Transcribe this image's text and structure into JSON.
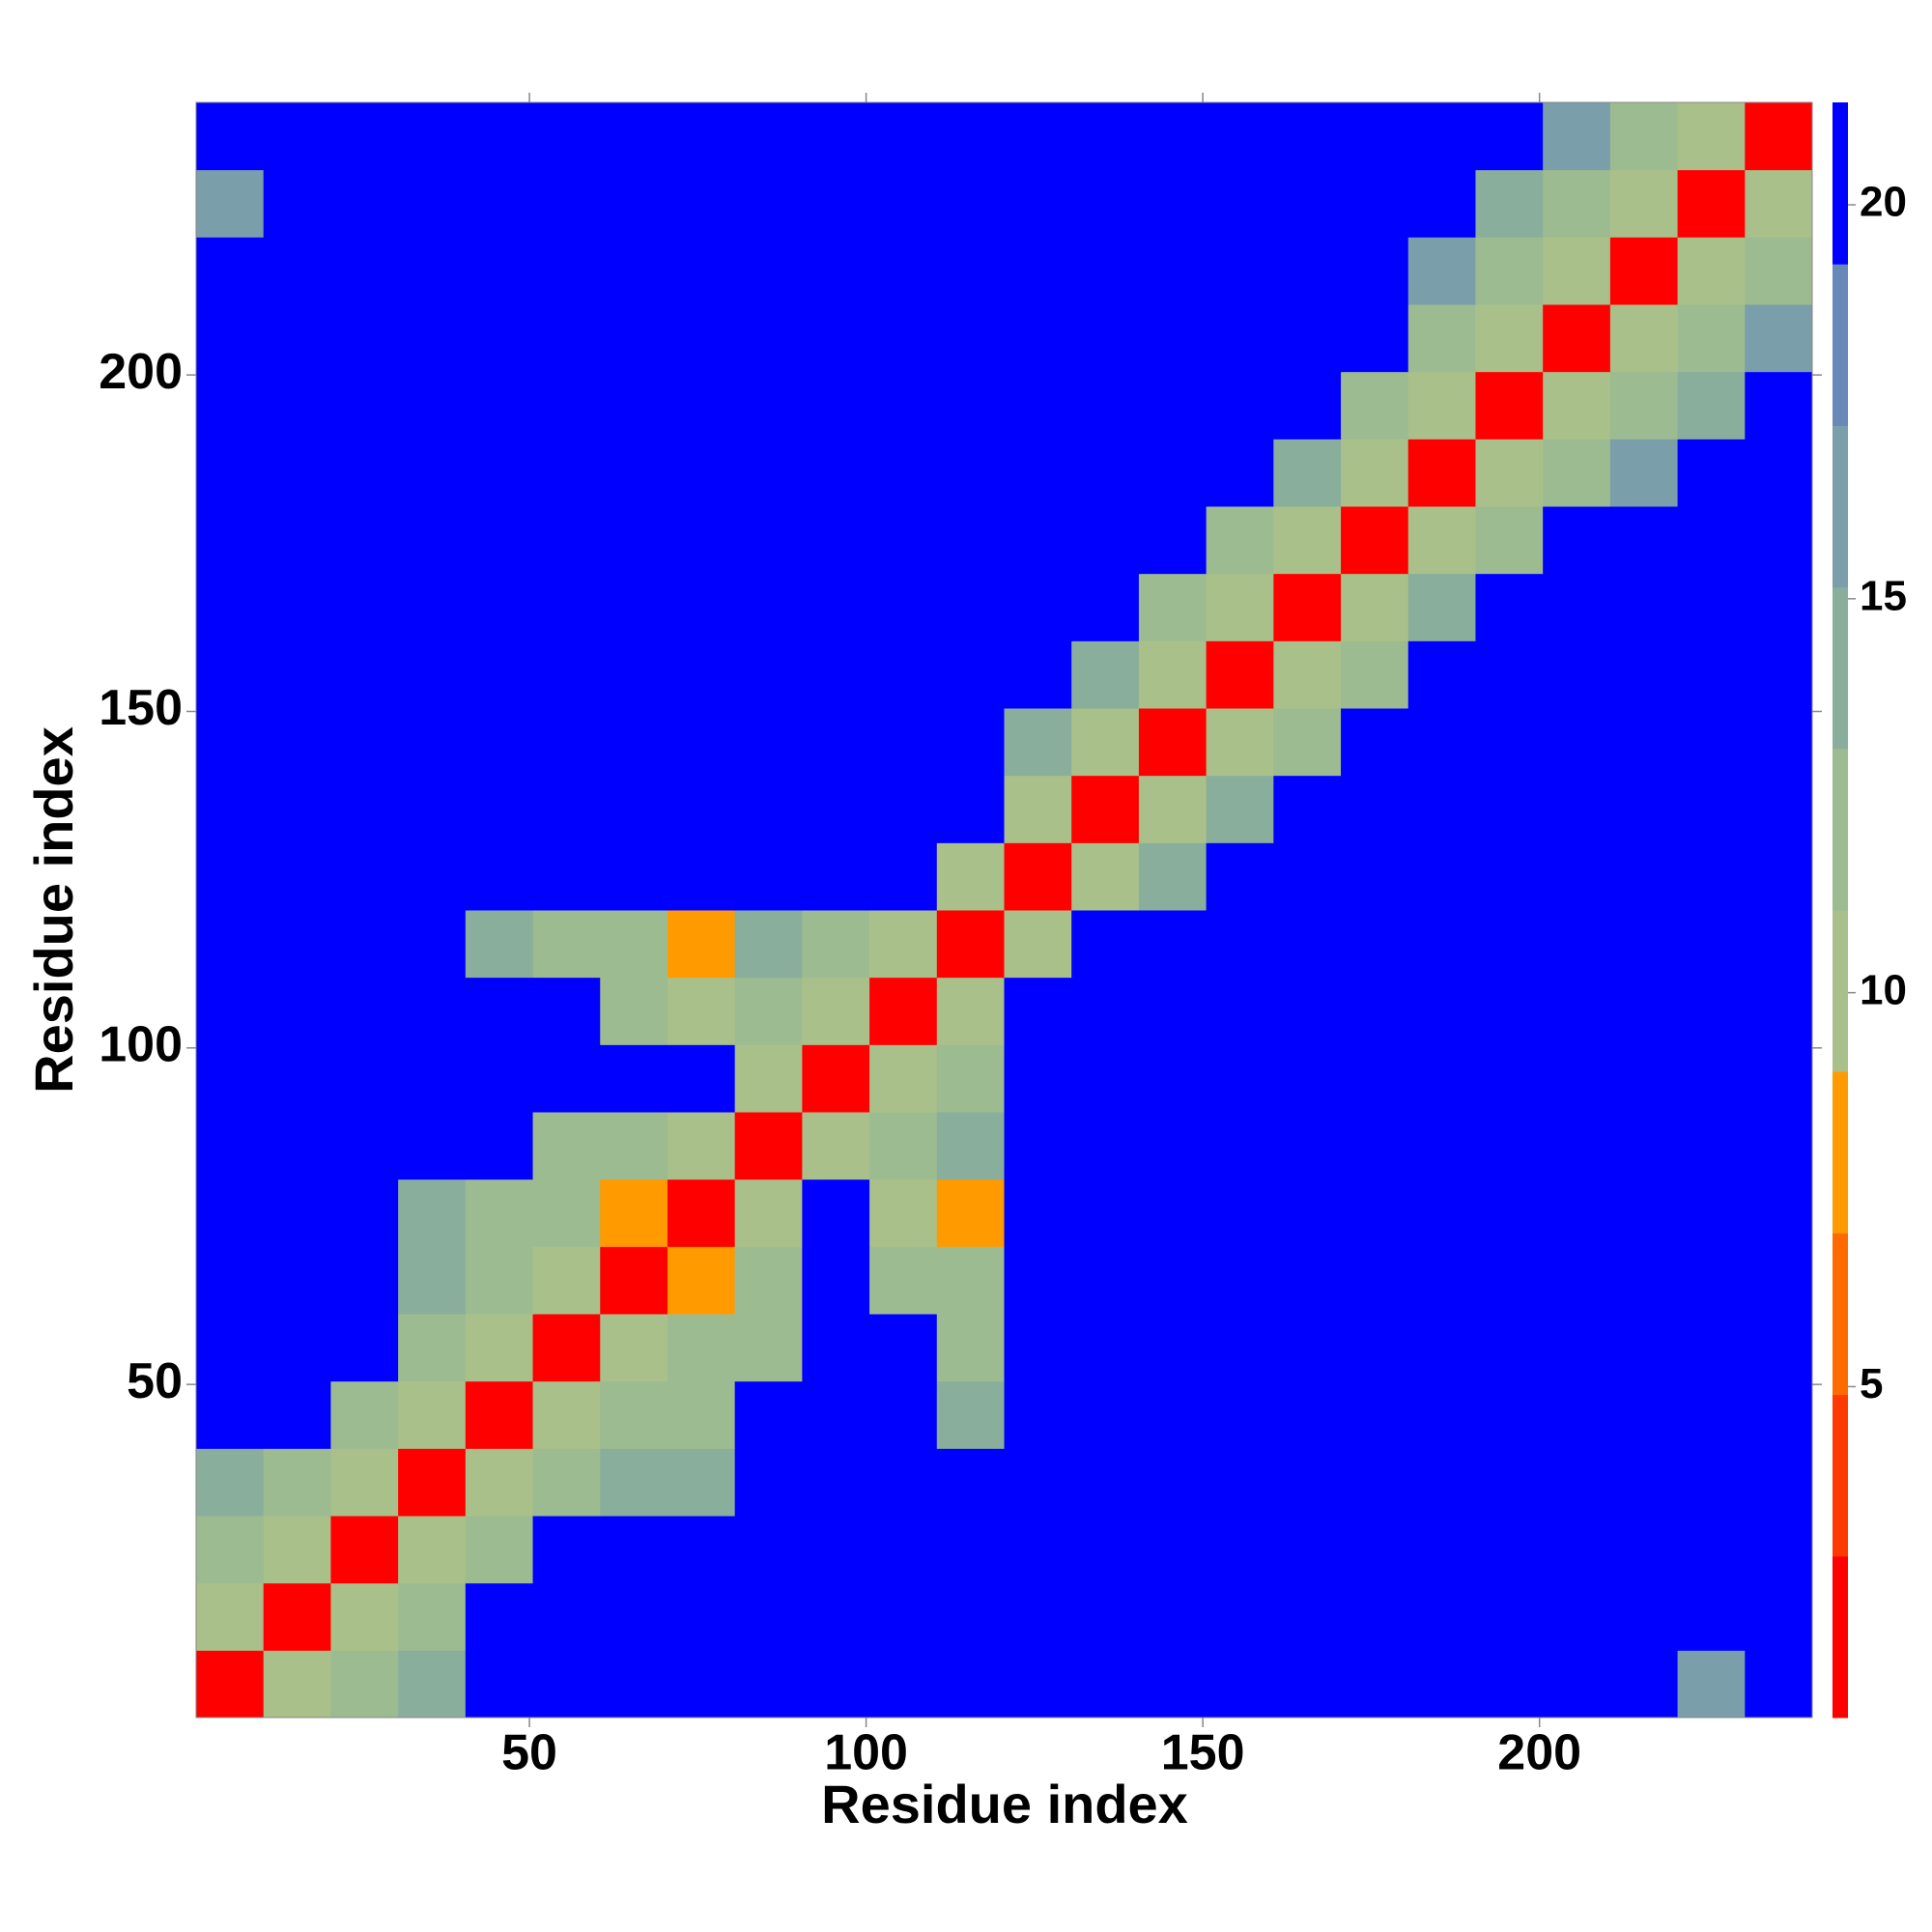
{
  "chart_data": {
    "type": "heatmap",
    "xlabel": "Residue index",
    "ylabel": "Residue index",
    "xlim": [
      0.5,
      240.5
    ],
    "ylim": [
      0.5,
      240.5
    ],
    "xticks": [
      50,
      100,
      150,
      200
    ],
    "yticks": [
      50,
      100,
      150,
      200
    ],
    "xbins": [
      0.5,
      10.5,
      20.5,
      30.5,
      40.5,
      50.5,
      60.5,
      70.5,
      80.5,
      90.5,
      100.5,
      110.5,
      120.5,
      130.5,
      140.5,
      150.5,
      160.5,
      170.5,
      180.5,
      190.5,
      200.5,
      210.5,
      220.5,
      230.5,
      240.5
    ],
    "ybins": [
      0.5,
      10.5,
      20.5,
      30.5,
      40.5,
      50.5,
      60.5,
      70.5,
      80.5,
      90.5,
      100.5,
      110.5,
      120.5,
      130.5,
      140.5,
      150.5,
      160.5,
      170.5,
      180.5,
      190.5,
      200.5,
      210.5,
      220.5,
      230.5,
      240.5
    ],
    "zlim": [
      0.8,
      21.3
    ],
    "zticks": [
      5,
      10,
      15,
      20
    ],
    "colors": [
      "#ff0000",
      "#ff3a00",
      "#ff6a00",
      "#ff9a00",
      "#a9c08a",
      "#9dbb90",
      "#8aae9c",
      "#7a9eaa",
      "#6888b8",
      "#0000ff"
    ],
    "z": [
      [
        2,
        11,
        13,
        15,
        21,
        21,
        21,
        21,
        21,
        21,
        21,
        21,
        21,
        21,
        21,
        21,
        21,
        21,
        21,
        21,
        21,
        21,
        17,
        21
      ],
      [
        11,
        2,
        11,
        13,
        21,
        21,
        21,
        21,
        21,
        21,
        21,
        21,
        21,
        21,
        21,
        21,
        21,
        21,
        21,
        21,
        21,
        21,
        21,
        21
      ],
      [
        13,
        11,
        2,
        11,
        13,
        21,
        21,
        21,
        21,
        21,
        21,
        21,
        21,
        21,
        21,
        21,
        21,
        21,
        21,
        21,
        21,
        21,
        21,
        21
      ],
      [
        15,
        13,
        11,
        2,
        11,
        13,
        14,
        14,
        21,
        21,
        21,
        21,
        21,
        21,
        21,
        21,
        21,
        21,
        21,
        21,
        21,
        21,
        21,
        21
      ],
      [
        21,
        21,
        13,
        11,
        2,
        11,
        12,
        13,
        21,
        21,
        21,
        14,
        21,
        21,
        21,
        21,
        21,
        21,
        21,
        21,
        21,
        21,
        21,
        21
      ],
      [
        21,
        21,
        21,
        13,
        11,
        2,
        11,
        12,
        13,
        21,
        21,
        13,
        21,
        21,
        21,
        21,
        21,
        21,
        21,
        21,
        21,
        21,
        21,
        21
      ],
      [
        21,
        21,
        21,
        14,
        12,
        11,
        2,
        7,
        13,
        21,
        13,
        12,
        21,
        21,
        21,
        21,
        21,
        21,
        21,
        21,
        21,
        21,
        21,
        21
      ],
      [
        21,
        21,
        21,
        14,
        13,
        12,
        7,
        2,
        11,
        21,
        10,
        7,
        21,
        21,
        21,
        21,
        21,
        21,
        21,
        21,
        21,
        21,
        21,
        21
      ],
      [
        21,
        21,
        21,
        21,
        21,
        13,
        13,
        11,
        2,
        11,
        12,
        14,
        21,
        21,
        21,
        21,
        21,
        21,
        21,
        21,
        21,
        21,
        21,
        21
      ],
      [
        21,
        21,
        21,
        21,
        21,
        21,
        21,
        21,
        11,
        2,
        11,
        12,
        21,
        21,
        21,
        21,
        21,
        21,
        21,
        21,
        21,
        21,
        21,
        21
      ],
      [
        21,
        21,
        21,
        21,
        21,
        21,
        13,
        10,
        12,
        11,
        2,
        11,
        21,
        21,
        21,
        21,
        21,
        21,
        21,
        21,
        21,
        21,
        21,
        21
      ],
      [
        21,
        21,
        21,
        21,
        14,
        13,
        12,
        7,
        14,
        12,
        11,
        2,
        11,
        21,
        21,
        21,
        21,
        21,
        21,
        21,
        21,
        21,
        21,
        21
      ],
      [
        21,
        21,
        21,
        21,
        21,
        21,
        21,
        21,
        21,
        21,
        21,
        11,
        2,
        11,
        14,
        21,
        21,
        21,
        21,
        21,
        21,
        21,
        21,
        21
      ],
      [
        21,
        21,
        21,
        21,
        21,
        21,
        21,
        21,
        21,
        21,
        21,
        21,
        11,
        2,
        11,
        14,
        21,
        21,
        21,
        21,
        21,
        21,
        21,
        21
      ],
      [
        21,
        21,
        21,
        21,
        21,
        21,
        21,
        21,
        21,
        21,
        21,
        21,
        14,
        11,
        2,
        11,
        13,
        21,
        21,
        21,
        21,
        21,
        21,
        21
      ],
      [
        21,
        21,
        21,
        21,
        21,
        21,
        21,
        21,
        21,
        21,
        21,
        21,
        21,
        14,
        11,
        2,
        11,
        13,
        21,
        21,
        21,
        21,
        21,
        21
      ],
      [
        21,
        21,
        21,
        21,
        21,
        21,
        21,
        21,
        21,
        21,
        21,
        21,
        21,
        21,
        13,
        11,
        2,
        11,
        14,
        21,
        21,
        21,
        21,
        21
      ],
      [
        21,
        21,
        21,
        21,
        21,
        21,
        21,
        21,
        21,
        21,
        21,
        21,
        21,
        21,
        21,
        13,
        11,
        2,
        11,
        13,
        21,
        21,
        21,
        21
      ],
      [
        21,
        21,
        21,
        21,
        21,
        21,
        21,
        21,
        21,
        21,
        21,
        21,
        21,
        21,
        21,
        21,
        14,
        11,
        2,
        11,
        13,
        16,
        21,
        21
      ],
      [
        21,
        21,
        21,
        21,
        21,
        21,
        21,
        21,
        21,
        21,
        21,
        21,
        21,
        21,
        21,
        21,
        21,
        13,
        11,
        2,
        11,
        13,
        15,
        21
      ],
      [
        21,
        21,
        21,
        21,
        21,
        21,
        21,
        21,
        21,
        21,
        21,
        21,
        21,
        21,
        21,
        21,
        21,
        21,
        13,
        11,
        2,
        11,
        13,
        16
      ],
      [
        21,
        21,
        21,
        21,
        21,
        21,
        21,
        21,
        21,
        21,
        21,
        21,
        21,
        21,
        21,
        21,
        21,
        21,
        16,
        13,
        11,
        2,
        11,
        13
      ],
      [
        17,
        21,
        21,
        21,
        21,
        21,
        21,
        21,
        21,
        21,
        21,
        21,
        21,
        21,
        21,
        21,
        21,
        21,
        21,
        15,
        13,
        11,
        2,
        11
      ],
      [
        21,
        21,
        21,
        21,
        21,
        21,
        21,
        21,
        21,
        21,
        21,
        21,
        21,
        21,
        21,
        21,
        21,
        21,
        21,
        21,
        16,
        13,
        11,
        2
      ]
    ]
  }
}
